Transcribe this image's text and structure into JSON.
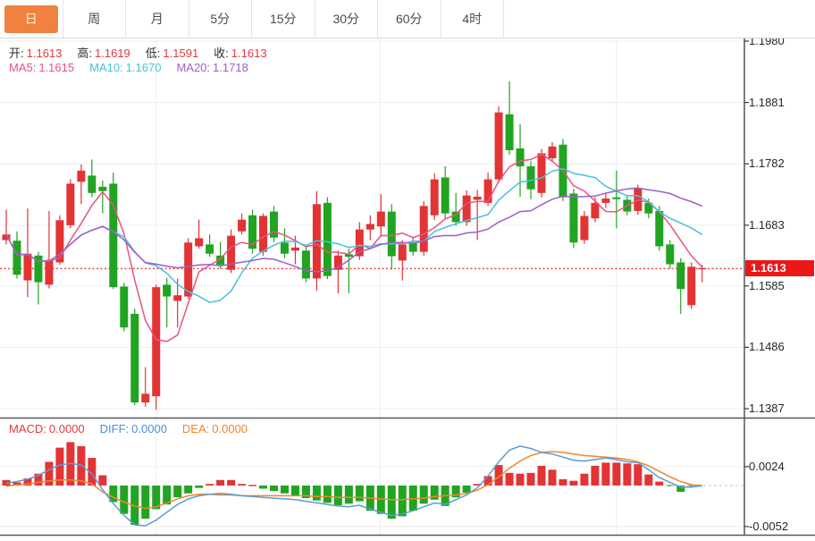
{
  "tabs": {
    "items": [
      {
        "label": "日",
        "active": true
      },
      {
        "label": "周",
        "active": false
      },
      {
        "label": "月",
        "active": false
      },
      {
        "label": "5分",
        "active": false
      },
      {
        "label": "15分",
        "active": false
      },
      {
        "label": "30分",
        "active": false
      },
      {
        "label": "60分",
        "active": false
      },
      {
        "label": "4时",
        "active": false
      }
    ],
    "active_bg": "#f0813f",
    "active_text": "#fdf3cf",
    "inactive_text": "#4a4a50"
  },
  "main_legend": {
    "ohlc": [
      {
        "label": "开:",
        "value": "1.1613"
      },
      {
        "label": "高:",
        "value": "1.1619"
      },
      {
        "label": "低:",
        "value": "1.1591"
      },
      {
        "label": "收:",
        "value": "1.1613"
      }
    ],
    "ohlc_label_color": "#2e2e33",
    "ohlc_value_color": "#e23b3d",
    "ma": [
      {
        "label": "MA5:",
        "value": "1.1615",
        "color": "#e8537f"
      },
      {
        "label": "MA10:",
        "value": "1.1670",
        "color": "#45c2d8"
      },
      {
        "label": "MA20:",
        "value": "1.1718",
        "color": "#a05fc5"
      }
    ]
  },
  "macd_legend": [
    {
      "label": "MACD:",
      "value": "0.0000",
      "color": "#e23b3d"
    },
    {
      "label": "DIFF:",
      "value": "0.0000",
      "color": "#4a90d9"
    },
    {
      "label": "DEA:",
      "value": "0.0000",
      "color": "#f0862c"
    }
  ],
  "colors": {
    "up_candle": "#e23335",
    "down_candle": "#21a421",
    "ma5": "#e8537f",
    "ma10": "#45c2d8",
    "ma20": "#a05fc5",
    "diff_line": "#5b9bd5",
    "dea_line": "#f0862c",
    "price_line": "#f24545",
    "badge_bg": "#ec1717",
    "grid": "#ededf2",
    "axis": "#3c3c40",
    "divider": "#55585c"
  },
  "chart_data": {
    "type": "candlestick",
    "panels": [
      "price_with_ma_overlays",
      "macd_histogram_with_diff_dea"
    ],
    "x_count": 66,
    "main": {
      "y_ticks": [
        {
          "label": "1.1980",
          "price": 1.198
        },
        {
          "label": "1.1881",
          "price": 1.1881
        },
        {
          "label": "1.1782",
          "price": 1.1782
        },
        {
          "label": "1.1683",
          "price": 1.1683
        },
        {
          "label": "1.1585",
          "price": 1.1585
        },
        {
          "label": "1.1486",
          "price": 1.1486
        },
        {
          "label": "1.1387",
          "price": 1.1387
        }
      ],
      "current_price": 1.1613,
      "current_price_label": "1.1613",
      "ma_periods": [
        5,
        10,
        20
      ],
      "candles": [
        [
          1.1659,
          1.1708,
          1.1652,
          1.1668
        ],
        [
          1.1658,
          1.1673,
          1.1597,
          1.1603
        ],
        [
          1.1594,
          1.171,
          1.1567,
          1.1637
        ],
        [
          1.1634,
          1.164,
          1.1555,
          1.1591
        ],
        [
          1.1587,
          1.1706,
          1.1581,
          1.1627
        ],
        [
          1.1623,
          1.1699,
          1.1619,
          1.1691
        ],
        [
          1.1683,
          1.1757,
          1.1678,
          1.175
        ],
        [
          1.1753,
          1.1781,
          1.1717,
          1.1771
        ],
        [
          1.1763,
          1.1789,
          1.1728,
          1.1735
        ],
        [
          1.1745,
          1.1755,
          1.1702,
          1.1738
        ],
        [
          1.175,
          1.1768,
          1.158,
          1.1583
        ],
        [
          1.1584,
          1.159,
          1.1512,
          1.1518
        ],
        [
          1.154,
          1.1548,
          1.1393,
          1.1397
        ],
        [
          1.1397,
          1.1454,
          1.139,
          1.1411
        ],
        [
          1.1407,
          1.1587,
          1.1385,
          1.1583
        ],
        [
          1.1587,
          1.1598,
          1.1518,
          1.1568
        ],
        [
          1.1561,
          1.1597,
          1.1518,
          1.157
        ],
        [
          1.1568,
          1.1662,
          1.1564,
          1.1655
        ],
        [
          1.1649,
          1.1692,
          1.1645,
          1.1662
        ],
        [
          1.1652,
          1.1668,
          1.1632,
          1.1637
        ],
        [
          1.1634,
          1.1656,
          1.1613,
          1.1619
        ],
        [
          1.1611,
          1.1676,
          1.1606,
          1.1666
        ],
        [
          1.1673,
          1.1702,
          1.1668,
          1.1692
        ],
        [
          1.1699,
          1.1708,
          1.1637,
          1.1645
        ],
        [
          1.164,
          1.1702,
          1.1634,
          1.1698
        ],
        [
          1.1705,
          1.1714,
          1.1656,
          1.1663
        ],
        [
          1.1655,
          1.1678,
          1.163,
          1.1637
        ],
        [
          1.1642,
          1.1666,
          1.162,
          1.1647
        ],
        [
          1.1642,
          1.1649,
          1.1591,
          1.1597
        ],
        [
          1.1597,
          1.1738,
          1.1577,
          1.1717
        ],
        [
          1.1719,
          1.1728,
          1.1596,
          1.1601
        ],
        [
          1.1611,
          1.1642,
          1.1573,
          1.1634
        ],
        [
          1.1636,
          1.1645,
          1.1573,
          1.1632
        ],
        [
          1.1633,
          1.1688,
          1.1627,
          1.1676
        ],
        [
          1.1676,
          1.1699,
          1.1659,
          1.1685
        ],
        [
          1.1681,
          1.1733,
          1.1664,
          1.1705
        ],
        [
          1.1705,
          1.1717,
          1.1611,
          1.1633
        ],
        [
          1.1626,
          1.1659,
          1.1594,
          1.1652
        ],
        [
          1.1655,
          1.1664,
          1.1634,
          1.164
        ],
        [
          1.164,
          1.1722,
          1.1634,
          1.1714
        ],
        [
          1.1699,
          1.1767,
          1.1691,
          1.1757
        ],
        [
          1.176,
          1.1778,
          1.1694,
          1.1702
        ],
        [
          1.1705,
          1.1735,
          1.1682,
          1.1688
        ],
        [
          1.1688,
          1.1739,
          1.1682,
          1.1731
        ],
        [
          1.1724,
          1.174,
          1.1659,
          1.1729
        ],
        [
          1.1719,
          1.1768,
          1.1714,
          1.1757
        ],
        [
          1.1757,
          1.1875,
          1.1751,
          1.1865
        ],
        [
          1.1862,
          1.1915,
          1.1797,
          1.1804
        ],
        [
          1.1807,
          1.1846,
          1.1729,
          1.1778
        ],
        [
          1.1778,
          1.1786,
          1.1725,
          1.1741
        ],
        [
          1.1735,
          1.1806,
          1.1728,
          1.1799
        ],
        [
          1.1791,
          1.1817,
          1.1786,
          1.181
        ],
        [
          1.1813,
          1.1822,
          1.1722,
          1.1728
        ],
        [
          1.1734,
          1.1742,
          1.1646,
          1.1655
        ],
        [
          1.1659,
          1.1706,
          1.1653,
          1.1698
        ],
        [
          1.1694,
          1.1728,
          1.1688,
          1.1719
        ],
        [
          1.1719,
          1.1735,
          1.1711,
          1.1726
        ],
        [
          1.1728,
          1.1771,
          1.1678,
          1.1725
        ],
        [
          1.1724,
          1.1731,
          1.1699,
          1.1705
        ],
        [
          1.1706,
          1.1748,
          1.17,
          1.1742
        ],
        [
          1.1719,
          1.1726,
          1.1694,
          1.1702
        ],
        [
          1.1706,
          1.1714,
          1.1642,
          1.1649
        ],
        [
          1.1652,
          1.1659,
          1.1613,
          1.162
        ],
        [
          1.1623,
          1.163,
          1.154,
          1.158
        ],
        [
          1.1554,
          1.1623,
          1.1548,
          1.1616
        ],
        [
          1.1613,
          1.1619,
          1.1591,
          1.1613
        ]
      ]
    },
    "macd": {
      "y_ticks": [
        {
          "label": "0.0024",
          "value": 0.0024
        },
        {
          "label": "-0.0052",
          "value": -0.0052
        }
      ],
      "histogram": [
        0.0007,
        0.0004,
        0.0009,
        0.0015,
        0.003,
        0.0048,
        0.0055,
        0.005,
        0.0035,
        0.0013,
        -0.0021,
        -0.0036,
        -0.005,
        -0.0042,
        -0.003,
        -0.0024,
        -0.0015,
        -0.001,
        -0.0003,
        0.0002,
        0.0007,
        0.0007,
        0.0002,
        0.0001,
        -0.0004,
        -0.0007,
        -0.001,
        -0.0013,
        -0.0016,
        -0.0019,
        -0.0022,
        -0.0025,
        -0.0023,
        -0.002,
        -0.0032,
        -0.0036,
        -0.0042,
        -0.0039,
        -0.0032,
        -0.0023,
        -0.0018,
        -0.0026,
        -0.0015,
        -0.0009,
        0.0002,
        0.0012,
        0.0026,
        0.0016,
        0.0015,
        0.0016,
        0.0025,
        0.002,
        0.0008,
        0.0006,
        0.0015,
        0.0025,
        0.0029,
        0.0029,
        0.0028,
        0.0027,
        0.0014,
        0.0005,
        -0.0001,
        -0.0008,
        -0.0001,
        0.0
      ],
      "diff": [
        0.0003,
        0.0005,
        0.0008,
        0.0013,
        0.002,
        0.0026,
        0.0028,
        0.0026,
        0.0015,
        -0.0005,
        -0.0023,
        -0.0038,
        -0.005,
        -0.0051,
        -0.0044,
        -0.0034,
        -0.0024,
        -0.0017,
        -0.0013,
        -0.0011,
        -0.001,
        -0.0011,
        -0.0013,
        -0.0014,
        -0.0015,
        -0.0016,
        -0.0017,
        -0.0018,
        -0.002,
        -0.0022,
        -0.0024,
        -0.0026,
        -0.0027,
        -0.0025,
        -0.003,
        -0.0034,
        -0.0038,
        -0.0036,
        -0.0032,
        -0.0027,
        -0.0022,
        -0.0024,
        -0.0018,
        -0.0012,
        -0.0003,
        0.0012,
        0.003,
        0.0045,
        0.005,
        0.0047,
        0.0042,
        0.004,
        0.0036,
        0.0032,
        0.0031,
        0.0033,
        0.0035,
        0.0033,
        0.003,
        0.0029,
        0.002,
        0.001,
        0.0004,
        -0.0002,
        -0.0002,
        0.0
      ],
      "dea": [
        -0.0001,
        0.0001,
        0.0002,
        0.0004,
        0.0006,
        0.0007,
        0.0007,
        0.0006,
        0.0002,
        -0.0008,
        -0.0015,
        -0.0021,
        -0.0026,
        -0.0029,
        -0.0027,
        -0.0022,
        -0.0017,
        -0.0013,
        -0.0011,
        -0.0011,
        -0.0012,
        -0.0012,
        -0.0013,
        -0.0013,
        -0.0013,
        -0.0013,
        -0.0013,
        -0.0013,
        -0.0013,
        -0.0014,
        -0.0014,
        -0.0015,
        -0.0015,
        -0.0015,
        -0.0016,
        -0.0017,
        -0.0018,
        -0.0018,
        -0.0017,
        -0.0016,
        -0.0014,
        -0.0013,
        -0.0012,
        -0.001,
        -0.0006,
        0.0001,
        0.0011,
        0.0022,
        0.0031,
        0.0038,
        0.0042,
        0.0043,
        0.0042,
        0.004,
        0.0038,
        0.0037,
        0.0036,
        0.0035,
        0.0033,
        0.003,
        0.0025,
        0.0018,
        0.0011,
        0.0005,
        0.0001,
        0.0
      ]
    }
  }
}
